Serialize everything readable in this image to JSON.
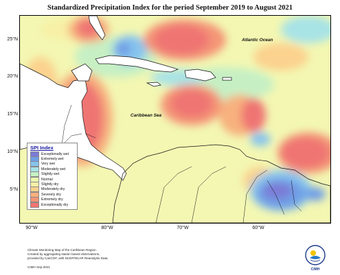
{
  "title": "Standardized Precipitation Index for the period September 2019 to August 2021",
  "axes": {
    "lat_labels": [
      "25°N",
      "20°N",
      "15°N",
      "10°N",
      "5°N"
    ],
    "lon_labels": [
      "90°W",
      "80°W",
      "70°W",
      "60°W"
    ]
  },
  "map_labels": {
    "atlantic": "Atlantic Ocean",
    "caribbean": "Caribbean Sea"
  },
  "legend": {
    "title": "SPI Index",
    "items": [
      {
        "label": "Exceptionally wet",
        "color": "#7b7bd6"
      },
      {
        "label": "Extremely wet",
        "color": "#6f9fe6"
      },
      {
        "label": "Very wet",
        "color": "#86c4ee"
      },
      {
        "label": "Moderately wet",
        "color": "#a8e3e6"
      },
      {
        "label": "Slightly wet",
        "color": "#c6f0c4"
      },
      {
        "label": "Normal",
        "color": "#ecf7b0"
      },
      {
        "label": "Slightly dry",
        "color": "#f8f0a6"
      },
      {
        "label": "Moderately dry",
        "color": "#fbd28e"
      },
      {
        "label": "Severely dry",
        "color": "#f7b17e"
      },
      {
        "label": "Extremely dry",
        "color": "#f49476"
      },
      {
        "label": "Exceptionally dry",
        "color": "#ef7473"
      }
    ]
  },
  "credits": {
    "line1": "Climate Monitoring Map of the Caribbean Region.",
    "line2": "Created by aggregating station based observations,",
    "line3": "provided by CariCOF, with NCEP/NCAR Reanalysis Data.",
    "line4": "CIMH Sep-2021"
  },
  "logo": {
    "text": "CIMH"
  }
}
